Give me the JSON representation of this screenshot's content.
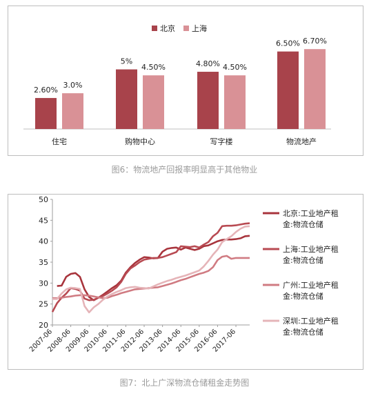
{
  "chart_data": [
    {
      "type": "bar",
      "categories": [
        "住宅",
        "购物中心",
        "写字楼",
        "物流地产"
      ],
      "series": [
        {
          "name": "北京",
          "values": [
            2.6,
            5.0,
            4.8,
            6.5
          ],
          "labels": [
            "2.60%",
            "5%",
            "4.80%",
            "6.50%"
          ],
          "color": "#a8434b"
        },
        {
          "name": "上海",
          "values": [
            3.0,
            4.5,
            4.5,
            6.7
          ],
          "labels": [
            "3.0%",
            "4.50%",
            "4.50%",
            "6.70%"
          ],
          "color": "#d99196"
        }
      ],
      "legend_position": "top-center",
      "grid": false,
      "ylim": [
        0,
        7
      ]
    },
    {
      "type": "line",
      "x_ticks": [
        "2007-06",
        "2008-06",
        "2009-06",
        "2010-06",
        "2011-06",
        "2012-06",
        "2013-06",
        "2014-06",
        "2015-06",
        "2016-06",
        "2017-06"
      ],
      "x_range": [
        2007.0,
        2017.75
      ],
      "ylim": [
        20,
        50
      ],
      "y_ticks": [
        "20",
        "25",
        "30",
        "35",
        "40",
        "45",
        "50"
      ],
      "grid": false,
      "legend_position": "right",
      "series": [
        {
          "name": "北京:工业地产租金:物流仓储",
          "color": "#a8343c",
          "points": [
            [
              2007.25,
              29.3
            ],
            [
              2007.5,
              29.4
            ],
            [
              2007.75,
              31.5
            ],
            [
              2008.0,
              32.2
            ],
            [
              2008.25,
              32.4
            ],
            [
              2008.5,
              31.5
            ],
            [
              2008.75,
              28.5
            ],
            [
              2009.0,
              26.7
            ],
            [
              2009.25,
              25.9
            ],
            [
              2009.5,
              26.5
            ],
            [
              2009.75,
              27.2
            ],
            [
              2010.0,
              28.0
            ],
            [
              2010.25,
              28.8
            ],
            [
              2010.5,
              29.5
            ],
            [
              2010.75,
              30.6
            ],
            [
              2011.0,
              32.5
            ],
            [
              2011.25,
              33.8
            ],
            [
              2011.5,
              34.8
            ],
            [
              2011.75,
              35.6
            ],
            [
              2012.0,
              36.2
            ],
            [
              2012.25,
              36.1
            ],
            [
              2012.5,
              35.9
            ],
            [
              2012.75,
              36.0
            ],
            [
              2013.0,
              37.5
            ],
            [
              2013.25,
              38.2
            ],
            [
              2013.5,
              38.4
            ],
            [
              2013.75,
              38.5
            ],
            [
              2014.0,
              38.0
            ],
            [
              2014.25,
              38.5
            ],
            [
              2014.5,
              38.2
            ],
            [
              2014.75,
              37.9
            ],
            [
              2015.0,
              38.2
            ],
            [
              2015.25,
              38.8
            ],
            [
              2015.5,
              39.0
            ],
            [
              2015.75,
              39.5
            ],
            [
              2016.0,
              40.0
            ],
            [
              2016.25,
              40.3
            ],
            [
              2016.5,
              40.4
            ],
            [
              2016.75,
              40.4
            ],
            [
              2017.0,
              40.5
            ],
            [
              2017.25,
              40.7
            ],
            [
              2017.5,
              41.2
            ],
            [
              2017.75,
              41.3
            ]
          ]
        },
        {
          "name": "上海:工业地产租金:物流仓储",
          "color": "#b84a52",
          "points": [
            [
              2007.0,
              23.1
            ],
            [
              2007.25,
              25.2
            ],
            [
              2007.5,
              26.5
            ],
            [
              2007.75,
              27.5
            ],
            [
              2008.0,
              28.8
            ],
            [
              2008.25,
              28.6
            ],
            [
              2008.5,
              28.2
            ],
            [
              2008.75,
              26.3
            ],
            [
              2009.0,
              25.9
            ],
            [
              2009.25,
              26.0
            ],
            [
              2009.5,
              26.5
            ],
            [
              2009.75,
              26.9
            ],
            [
              2010.0,
              27.5
            ],
            [
              2010.25,
              28.2
            ],
            [
              2010.5,
              29.0
            ],
            [
              2010.75,
              30.3
            ],
            [
              2011.0,
              32.2
            ],
            [
              2011.25,
              33.5
            ],
            [
              2011.5,
              34.2
            ],
            [
              2011.75,
              35.0
            ],
            [
              2012.0,
              35.6
            ],
            [
              2012.25,
              35.8
            ],
            [
              2012.5,
              36.0
            ],
            [
              2012.75,
              36.0
            ],
            [
              2013.0,
              36.2
            ],
            [
              2013.25,
              36.6
            ],
            [
              2013.5,
              37.0
            ],
            [
              2013.75,
              37.4
            ],
            [
              2014.0,
              38.8
            ],
            [
              2014.25,
              38.7
            ],
            [
              2014.5,
              38.6
            ],
            [
              2014.75,
              38.8
            ],
            [
              2015.0,
              38.5
            ],
            [
              2015.25,
              39.2
            ],
            [
              2015.5,
              39.8
            ],
            [
              2015.75,
              41.2
            ],
            [
              2016.0,
              42.0
            ],
            [
              2016.25,
              43.6
            ],
            [
              2016.5,
              43.7
            ],
            [
              2016.75,
              43.7
            ],
            [
              2017.0,
              43.8
            ],
            [
              2017.25,
              44.0
            ],
            [
              2017.5,
              44.2
            ],
            [
              2017.75,
              44.3
            ]
          ]
        },
        {
          "name": "广州:工业地产租金:物流仓储",
          "color": "#d07b82",
          "points": [
            [
              2007.0,
              26.4
            ],
            [
              2007.25,
              26.4
            ],
            [
              2007.5,
              26.5
            ],
            [
              2007.75,
              26.7
            ],
            [
              2008.0,
              26.8
            ],
            [
              2008.25,
              27.0
            ],
            [
              2008.5,
              27.1
            ],
            [
              2008.75,
              27.1
            ],
            [
              2009.0,
              27.0
            ],
            [
              2009.25,
              26.8
            ],
            [
              2009.5,
              26.6
            ],
            [
              2009.75,
              26.4
            ],
            [
              2010.0,
              26.5
            ],
            [
              2010.25,
              26.9
            ],
            [
              2010.5,
              27.2
            ],
            [
              2010.75,
              27.6
            ],
            [
              2011.0,
              27.9
            ],
            [
              2011.25,
              28.2
            ],
            [
              2011.5,
              28.5
            ],
            [
              2011.75,
              28.6
            ],
            [
              2012.0,
              28.7
            ],
            [
              2012.25,
              28.8
            ],
            [
              2012.5,
              28.9
            ],
            [
              2012.75,
              29.0
            ],
            [
              2013.0,
              29.3
            ],
            [
              2013.25,
              29.6
            ],
            [
              2013.5,
              29.9
            ],
            [
              2013.75,
              30.3
            ],
            [
              2014.0,
              30.7
            ],
            [
              2014.25,
              31.0
            ],
            [
              2014.5,
              31.4
            ],
            [
              2014.75,
              31.8
            ],
            [
              2015.0,
              32.2
            ],
            [
              2015.25,
              32.5
            ],
            [
              2015.5,
              32.9
            ],
            [
              2015.75,
              33.8
            ],
            [
              2016.0,
              35.5
            ],
            [
              2016.25,
              36.3
            ],
            [
              2016.5,
              36.5
            ],
            [
              2016.75,
              35.8
            ],
            [
              2017.0,
              36.0
            ],
            [
              2017.25,
              36.0
            ],
            [
              2017.5,
              36.0
            ],
            [
              2017.75,
              36.0
            ]
          ]
        },
        {
          "name": "深圳:工业地产租金:物流仓储",
          "color": "#e5b4b8",
          "points": [
            [
              2007.0,
              26.2
            ],
            [
              2007.25,
              26.2
            ],
            [
              2007.5,
              27.5
            ],
            [
              2007.75,
              28.5
            ],
            [
              2008.0,
              28.9
            ],
            [
              2008.25,
              28.8
            ],
            [
              2008.5,
              28.6
            ],
            [
              2008.75,
              24.5
            ],
            [
              2009.0,
              23.0
            ],
            [
              2009.25,
              24.2
            ],
            [
              2009.5,
              25.0
            ],
            [
              2009.75,
              26.0
            ],
            [
              2010.0,
              26.8
            ],
            [
              2010.25,
              27.4
            ],
            [
              2010.5,
              27.9
            ],
            [
              2010.75,
              28.3
            ],
            [
              2011.0,
              28.8
            ],
            [
              2011.25,
              29.0
            ],
            [
              2011.5,
              29.1
            ],
            [
              2011.75,
              28.9
            ],
            [
              2012.0,
              28.8
            ],
            [
              2012.25,
              28.7
            ],
            [
              2012.5,
              29.2
            ],
            [
              2012.75,
              29.7
            ],
            [
              2013.0,
              30.1
            ],
            [
              2013.25,
              30.5
            ],
            [
              2013.5,
              30.8
            ],
            [
              2013.75,
              31.2
            ],
            [
              2014.0,
              31.5
            ],
            [
              2014.25,
              31.8
            ],
            [
              2014.5,
              32.2
            ],
            [
              2014.75,
              32.6
            ],
            [
              2015.0,
              33.0
            ],
            [
              2015.25,
              34.0
            ],
            [
              2015.5,
              35.3
            ],
            [
              2015.75,
              36.8
            ],
            [
              2016.0,
              38.0
            ],
            [
              2016.25,
              39.8
            ],
            [
              2016.5,
              40.5
            ],
            [
              2016.75,
              41.2
            ],
            [
              2017.0,
              42.2
            ],
            [
              2017.25,
              43.0
            ],
            [
              2017.5,
              43.5
            ],
            [
              2017.75,
              43.6
            ]
          ]
        }
      ]
    }
  ],
  "captions": {
    "fig6": "图6：物流地产回报率明显高于其他物业",
    "fig7": "图7：北上广深物流仓储租金走势图"
  }
}
